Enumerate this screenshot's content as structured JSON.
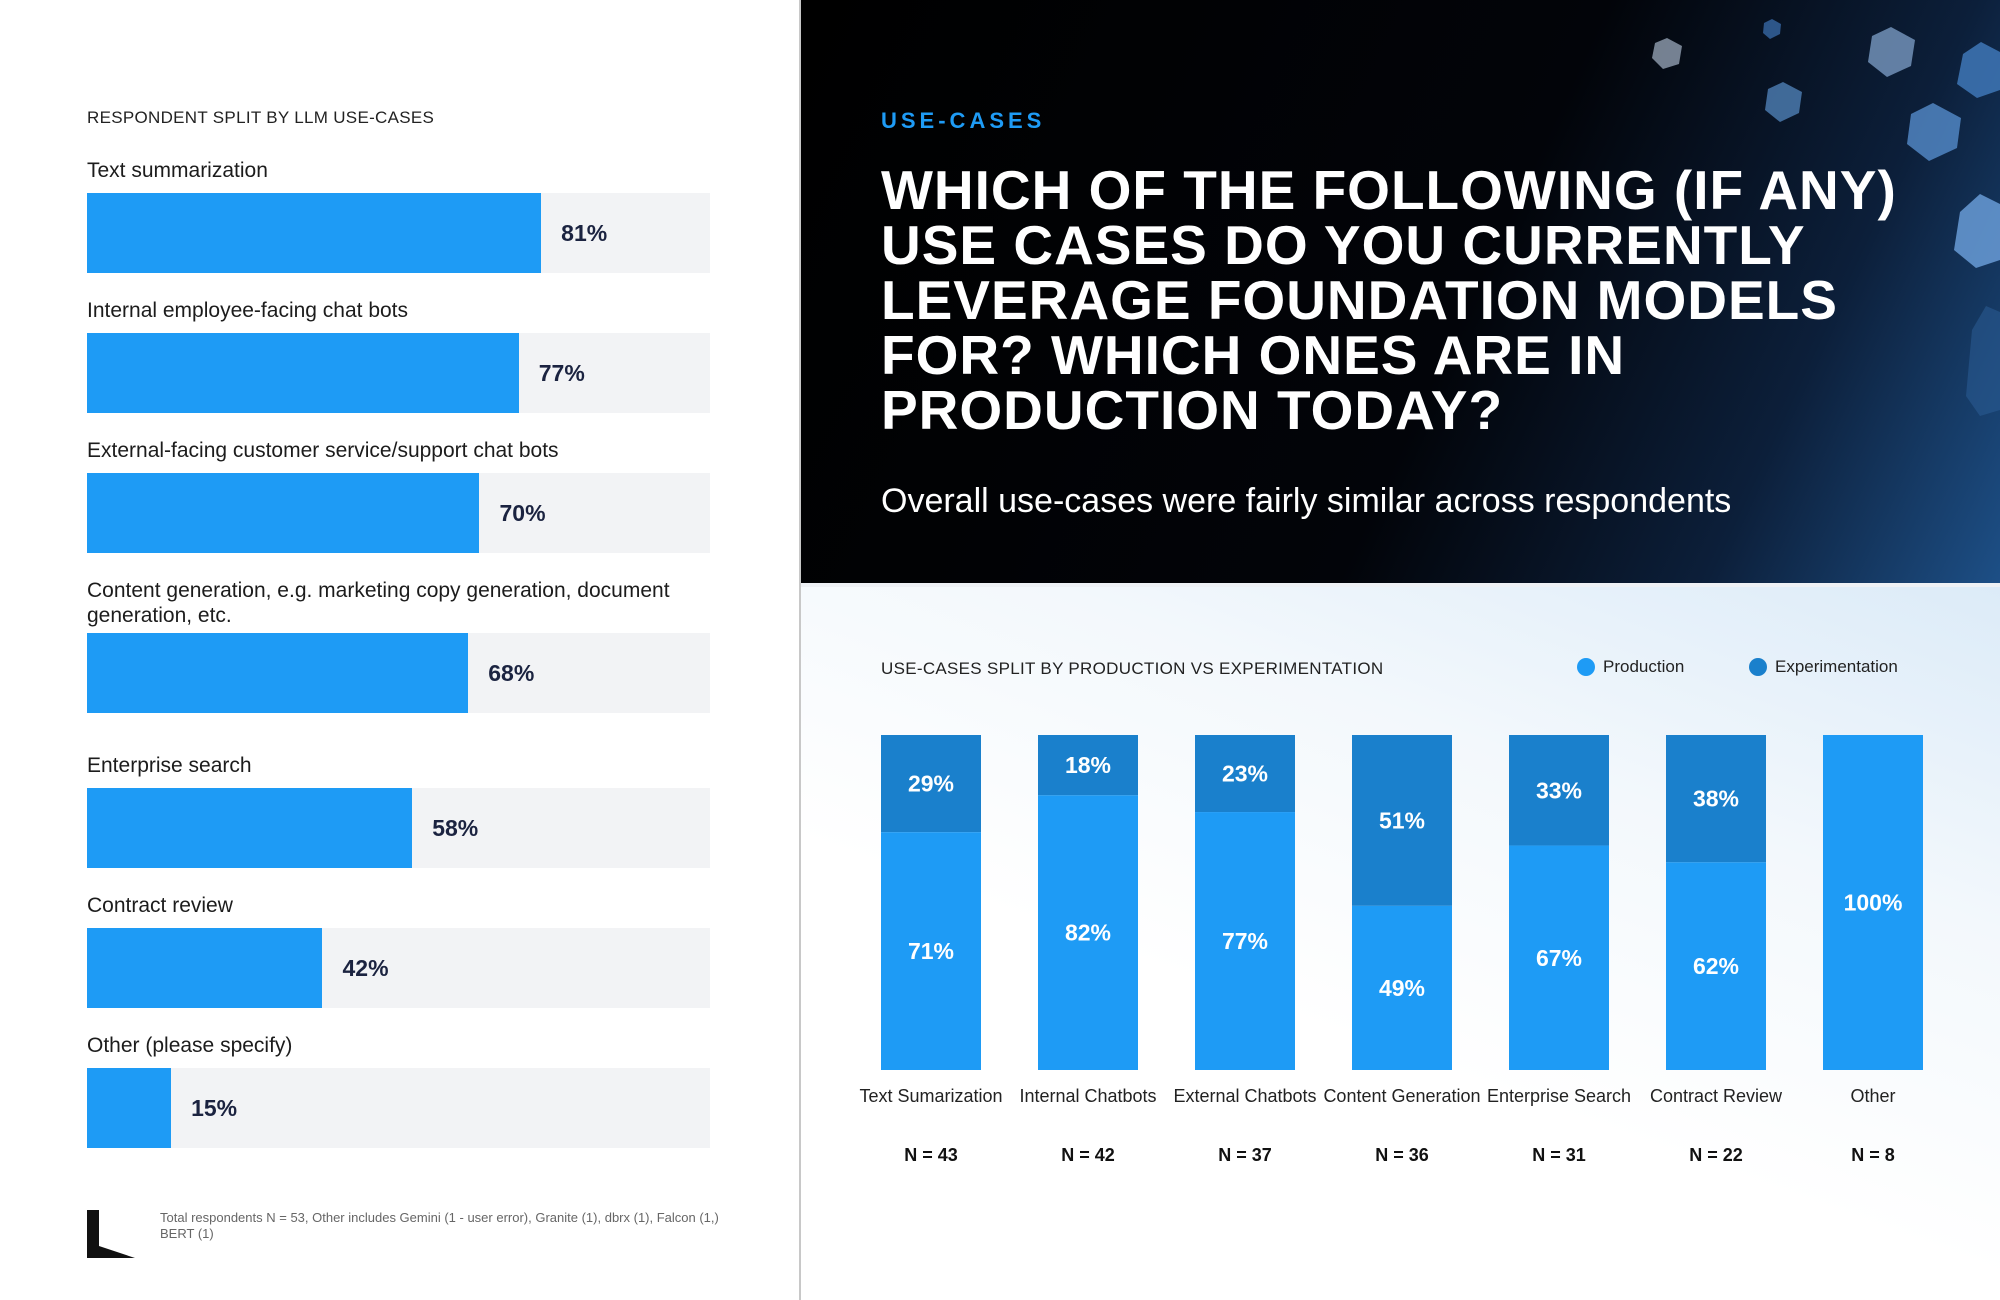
{
  "left": {
    "title": "RESPONDENT SPLIT BY LLM USE-CASES",
    "bars": [
      {
        "label": "Text summarization",
        "value": 81,
        "value_label": "81%"
      },
      {
        "label": "Internal employee-facing chat bots",
        "value": 77,
        "value_label": "77%"
      },
      {
        "label": "External-facing customer service/support chat bots",
        "value": 70,
        "value_label": "70%"
      },
      {
        "label": "Content generation, e.g. marketing copy generation, document generation, etc.",
        "value": 68,
        "value_label": "68%"
      },
      {
        "label": "Enterprise search",
        "value": 58,
        "value_label": "58%"
      },
      {
        "label": "Contract review",
        "value": 42,
        "value_label": "42%"
      },
      {
        "label": "Other (please specify)",
        "value": 15,
        "value_label": "15%"
      }
    ],
    "footnote": "Total respondents N = 53, Other includes Gemini (1 - user error), Granite (1), dbrx (1), Falcon (1,) BERT (1)"
  },
  "hero": {
    "kicker": "USE-CASES",
    "title": "WHICH OF THE FOLLOWING (IF ANY) USE CASES DO YOU CURRENTLY LEVERAGE FOUNDATION MODELS FOR? WHICH ONES ARE IN PRODUCTION TODAY?",
    "subtitle": "Overall use-cases were fairly similar across respondents"
  },
  "colors": {
    "production": "#1e9bf5",
    "experimentation": "#1a80cc",
    "track": "#f2f3f5",
    "accent": "#1e9bf5"
  },
  "chart_data": [
    {
      "type": "bar",
      "orientation": "horizontal",
      "title": "RESPONDENT SPLIT BY LLM USE-CASES",
      "categories": [
        "Text summarization",
        "Internal employee-facing chat bots",
        "External-facing customer service/support chat bots",
        "Content generation, e.g. marketing copy generation, document generation, etc.",
        "Enterprise search",
        "Contract review",
        "Other (please specify)"
      ],
      "values": [
        81,
        77,
        70,
        68,
        58,
        42,
        15
      ],
      "xlim": [
        0,
        100
      ]
    },
    {
      "type": "bar",
      "stacked": true,
      "title": "USE-CASES SPLIT BY PRODUCTION VS EXPERIMENTATION",
      "legend": "top-right",
      "categories": [
        "Text Sumarization",
        "Internal Chatbots",
        "External Chatbots",
        "Content Generation",
        "Enterprise Search",
        "Contract Review",
        "Other"
      ],
      "n_labels": [
        "N = 43",
        "N = 42",
        "N = 37",
        "N = 36",
        "N = 31",
        "N = 22",
        "N = 8"
      ],
      "series": [
        {
          "name": "Production",
          "values": [
            71,
            82,
            77,
            49,
            67,
            62,
            100
          ],
          "labels": [
            "71%",
            "82%",
            "77%",
            "49%",
            "67%",
            "62%",
            "100%"
          ]
        },
        {
          "name": "Experimentation",
          "values": [
            29,
            18,
            23,
            51,
            33,
            38,
            0
          ],
          "labels": [
            "29%",
            "18%",
            "23%",
            "51%",
            "33%",
            "38%",
            ""
          ]
        }
      ],
      "ylim": [
        0,
        100
      ]
    }
  ]
}
